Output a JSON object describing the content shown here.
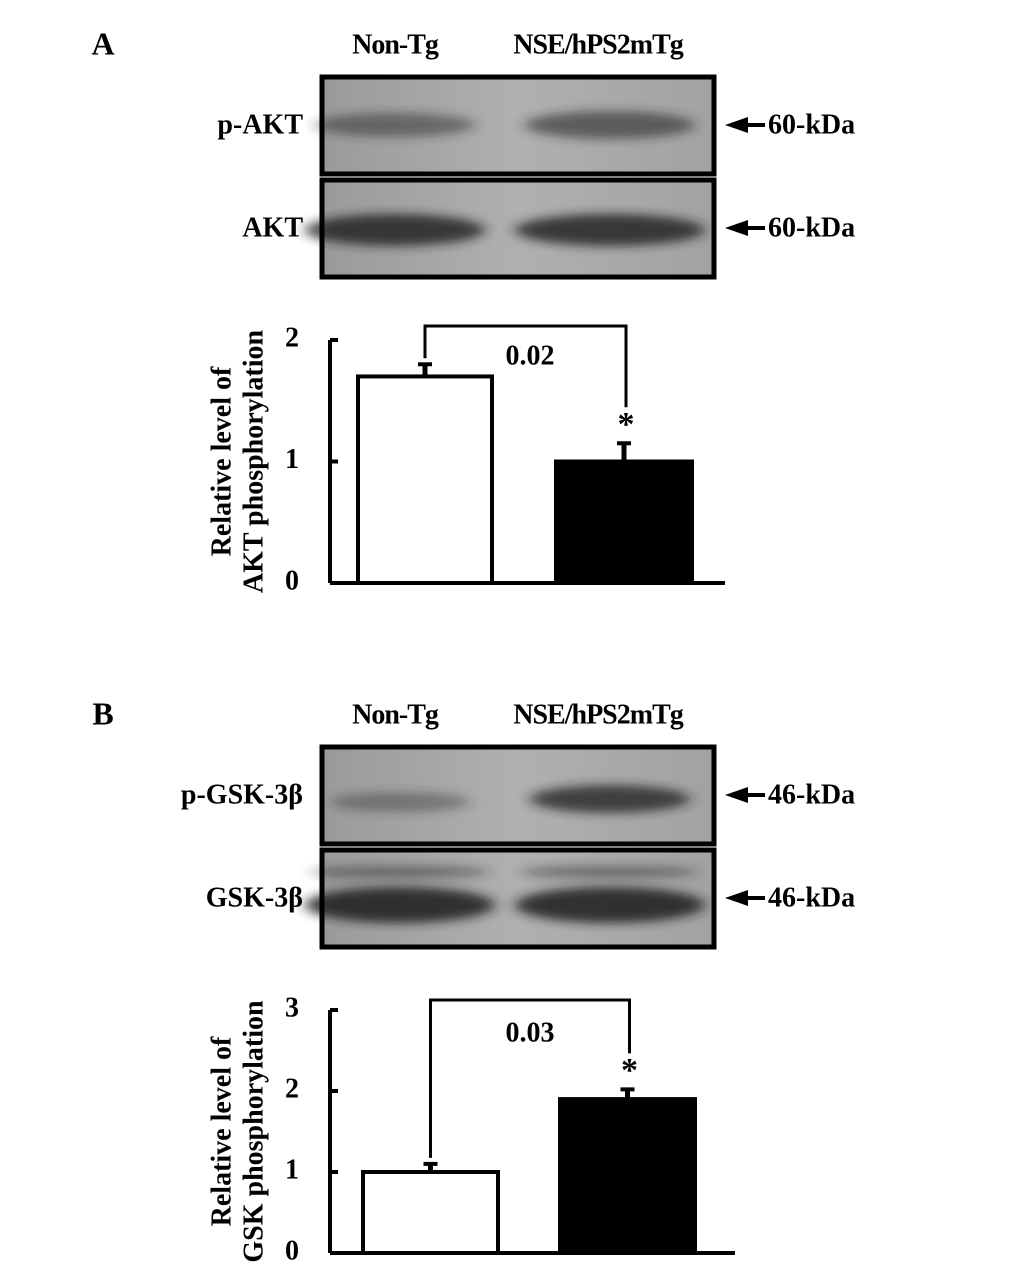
{
  "chart_data": [
    {
      "type": "bar",
      "panel": "A",
      "categories": [
        "Non-Tg",
        "NSE/hPS2mTg"
      ],
      "blots": [
        {
          "label": "p-AKT",
          "marker": "60-kDa"
        },
        {
          "label": "AKT",
          "marker": "60-kDa"
        }
      ],
      "ylabel": [
        "Relative level of",
        "AKT phosphorylation"
      ],
      "values": [
        1.7,
        1.0
      ],
      "errors": [
        0.1,
        0.15
      ],
      "colors": [
        "#ffffff",
        "#000000"
      ],
      "ylim": [
        0,
        2
      ],
      "yticks": [
        0,
        1,
        2
      ],
      "p_value": "0.02",
      "significance": "*"
    },
    {
      "type": "bar",
      "panel": "B",
      "categories": [
        "Non-Tg",
        "NSE/hPS2mTg"
      ],
      "blots": [
        {
          "label": "p-GSK-3β",
          "marker": "46-kDa"
        },
        {
          "label": "GSK-3β",
          "marker": "46-kDa"
        }
      ],
      "ylabel": [
        "Relative level of",
        "GSK phosphorylation"
      ],
      "values": [
        1.0,
        1.9
      ],
      "errors": [
        0.1,
        0.12
      ],
      "colors": [
        "#ffffff",
        "#000000"
      ],
      "ylim": [
        0,
        3
      ],
      "yticks": [
        0,
        1,
        2,
        3
      ],
      "p_value": "0.03",
      "significance": "*"
    }
  ]
}
